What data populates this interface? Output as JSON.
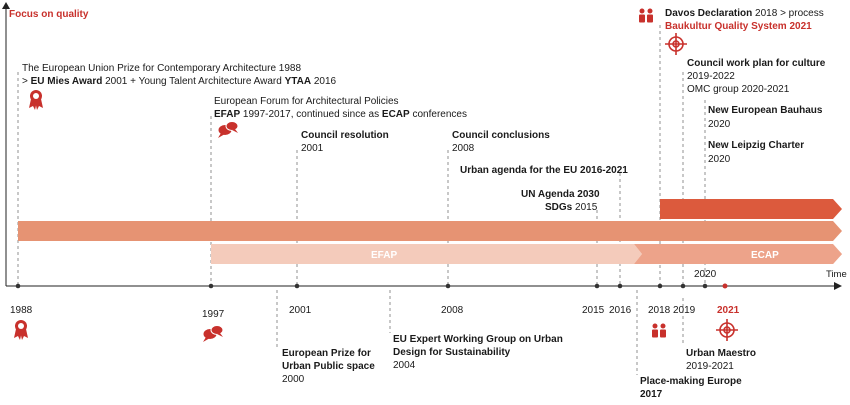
{
  "heading": "Focus on quality",
  "axis": {
    "label": "Time"
  },
  "band_labels": {
    "efap": "EFAP",
    "ecap": "ECAP"
  },
  "years": [
    "1988",
    "1997",
    "2001",
    "2008",
    "2015",
    "2016",
    "2018",
    "2019",
    "2021"
  ],
  "year_2020_label": "2020",
  "events_top": {
    "euprize_l1": "The European Union Prize for Contemporary Architecture 1988",
    "euprize_l2_pre": "> ",
    "euprize_l2_b1": "EU Mies Award",
    "euprize_l2_mid": " 2001 + Young Talent Architecture Award ",
    "euprize_l2_b2": "YTAA",
    "euprize_l2_post": " 2016",
    "efap_l1": "European Forum for Architectural Policies",
    "efap_l2_b1": "EFAP",
    "efap_l2_mid": " 1997-2017, continued since as ",
    "efap_l2_b2": "ECAP",
    "efap_l2_post": " conferences",
    "council_res": "Council resolution",
    "council_res_year": "2001",
    "council_concl": "Council conclusions",
    "council_concl_year": "2008",
    "urban_agenda": "Urban agenda for the EU 2016-2021",
    "un_agenda_b": "UN Agenda 2030",
    "sdgs_b": "SDGs",
    "sdgs_year": " 2015",
    "davos_b": "Davos Declaration",
    "davos_post": " 2018 > process",
    "baukultur": "Baukultur Quality System 2021",
    "council_plan": "Council work plan for culture",
    "council_plan_year": "2019-2022",
    "omc": "OMC group 2020-2021",
    "bauhaus": "New European Bauhaus",
    "bauhaus_year": "2020",
    "leipzig": "New Leipzig Charter",
    "leipzig_year": "2020"
  },
  "events_bottom": {
    "prize_public_l1": "European Prize for",
    "prize_public_l2": "Urban Public space",
    "prize_public_year": "2000",
    "expert_l1": "EU Expert Working Group on Urban",
    "expert_l2": "Design for Sustainability",
    "expert_year": "2004",
    "maestro": "Urban Maestro",
    "maestro_year": "2019-2021",
    "placemaking": "Place-making Europe",
    "placemaking_year": "2017"
  },
  "colors": {
    "accent": "#c8312c",
    "band_dark": "#dc5a3d",
    "band_mid": "#eda38a",
    "band_light": "#f4cbbb"
  }
}
